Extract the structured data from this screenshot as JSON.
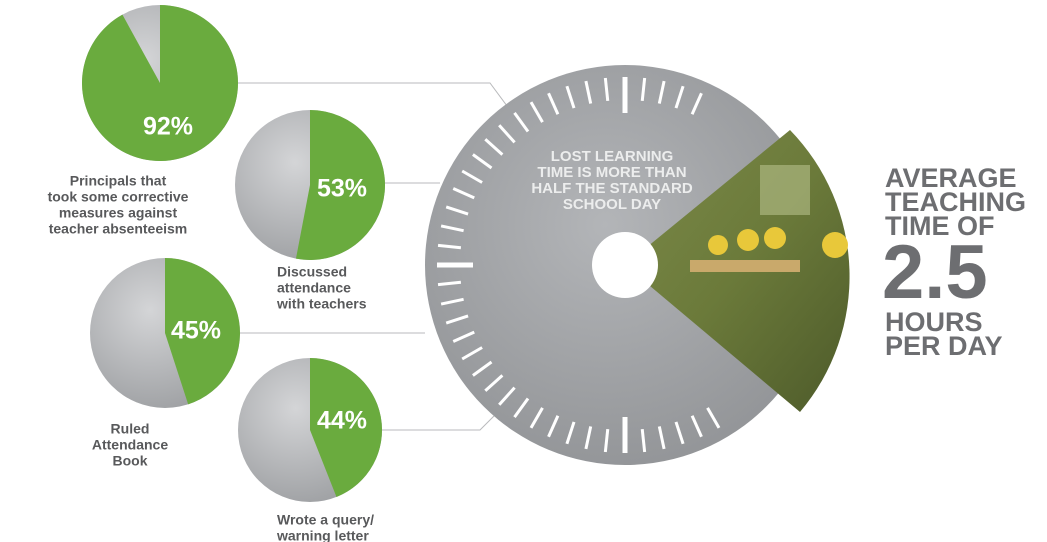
{
  "chart_data": [
    {
      "type": "pie",
      "caption": [
        "Principals that",
        "took some corrective",
        "measures against",
        "teacher absenteeism"
      ],
      "values": [
        92
      ],
      "value_labels": [
        "92%"
      ],
      "color": "#6aab3e"
    },
    {
      "type": "pie",
      "caption": [
        "Discussed",
        "attendance",
        "with teachers"
      ],
      "values": [
        53
      ],
      "value_labels": [
        "53%"
      ],
      "color": "#6aab3e"
    },
    {
      "type": "pie",
      "caption": [
        "Ruled",
        "Attendance",
        "Book"
      ],
      "values": [
        45
      ],
      "value_labels": [
        "45%"
      ],
      "color": "#6aab3e"
    },
    {
      "type": "pie",
      "caption": [
        "Wrote a query/",
        "warning letter"
      ],
      "values": [
        44
      ],
      "value_labels": [
        "44%"
      ],
      "color": "#6aab3e"
    }
  ],
  "clock": {
    "caption": [
      "LOST LEARNING",
      "TIME IS MORE THAN",
      "HALF THE STANDARD",
      "SCHOOL DAY"
    ]
  },
  "callout": {
    "lead": [
      "AVERAGE",
      "TEACHING",
      "TIME OF"
    ],
    "figure": "2.5",
    "unit": [
      "HOURS",
      "PER DAY"
    ]
  }
}
